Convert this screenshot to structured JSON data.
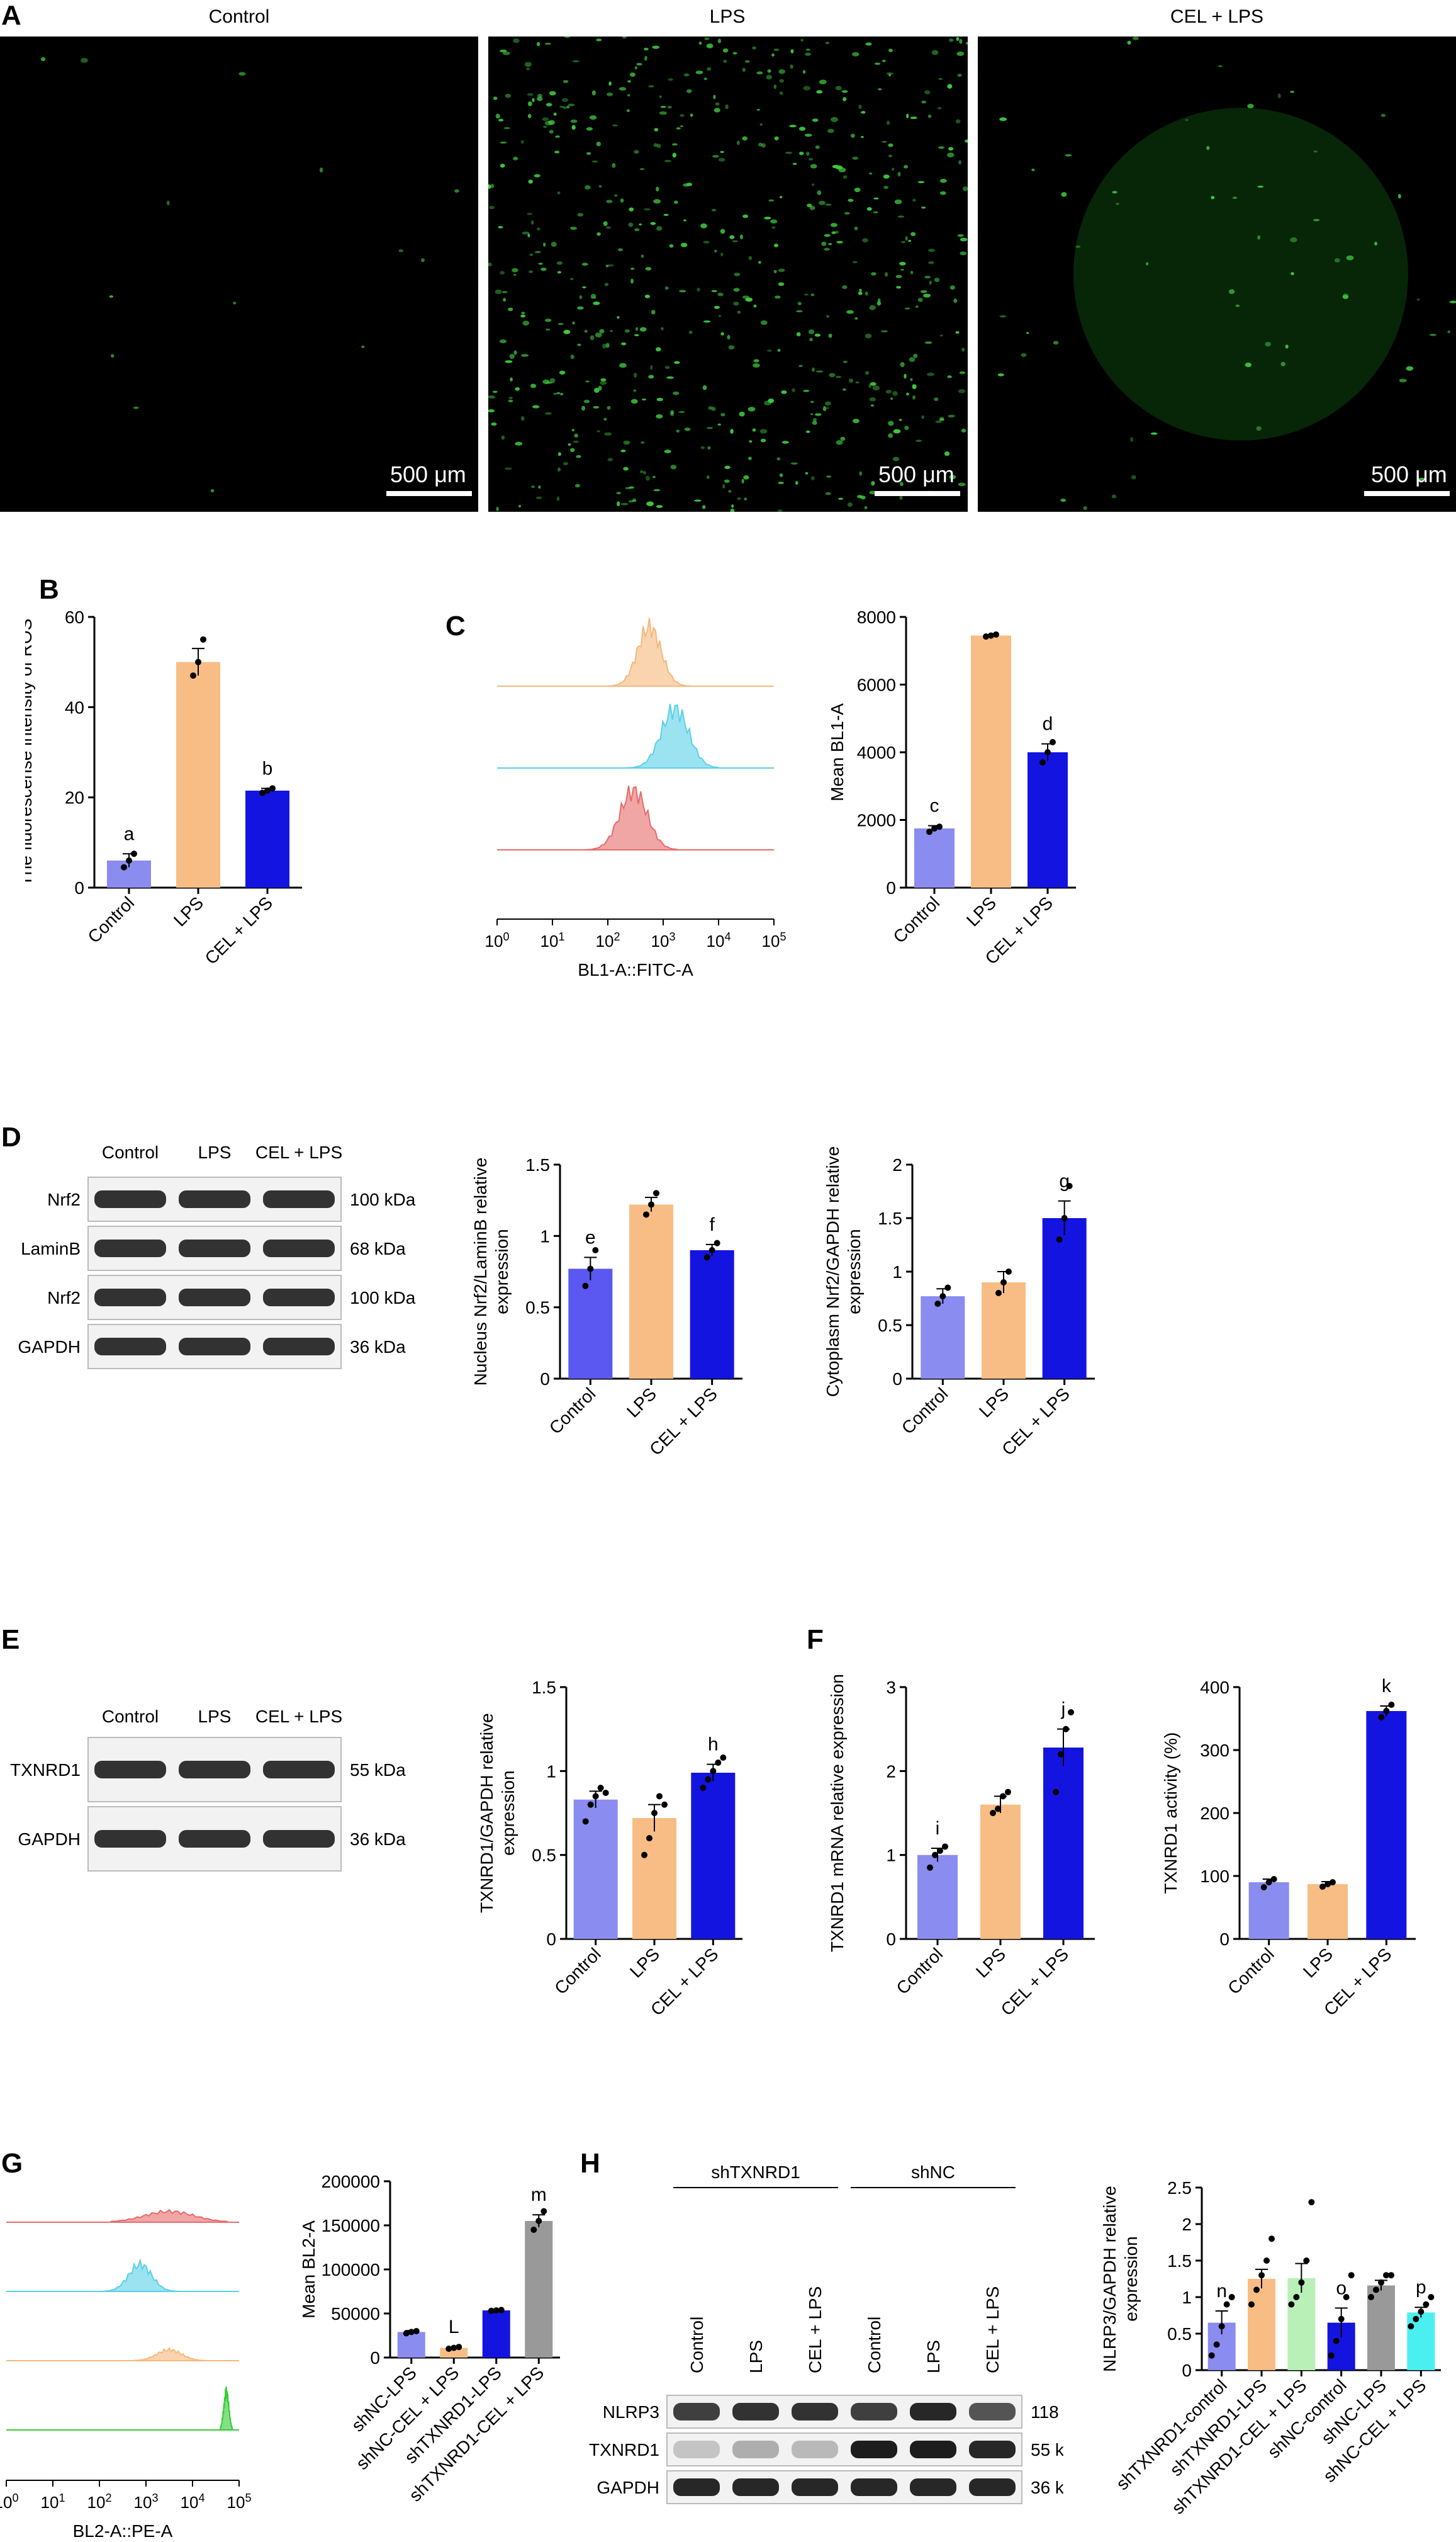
{
  "panel_letters": {
    "A": "A",
    "B": "B",
    "C": "C",
    "D": "D",
    "E": "E",
    "F": "F",
    "G": "G",
    "H": "H"
  },
  "microscopy": {
    "titles": [
      "Control",
      "LPS",
      "CEL + LPS"
    ],
    "scale_label": "500 μm",
    "colors": {
      "cell": "#3ec83e",
      "background": "#000000"
    },
    "cell_density": [
      0.02,
      0.9,
      0.08
    ]
  },
  "westerns": {
    "D": {
      "lanes": [
        "Control",
        "LPS",
        "CEL + LPS"
      ],
      "rows": [
        {
          "name": "Nrf2",
          "kda": "100 kDa"
        },
        {
          "name": "LaminB",
          "kda": "68 kDa"
        },
        {
          "name": "Nrf2",
          "kda": "100 kDa"
        },
        {
          "name": "GAPDH",
          "kda": "36 kDa"
        }
      ]
    },
    "E": {
      "lanes": [
        "Control",
        "LPS",
        "CEL + LPS"
      ],
      "rows": [
        {
          "name": "TXNRD1",
          "kda": "55 kDa"
        },
        {
          "name": "GAPDH",
          "kda": "36 kDa"
        }
      ]
    },
    "H": {
      "groups": [
        "shTXNRD1",
        "shNC"
      ],
      "lanes": [
        "Control",
        "LPS",
        "CEL + LPS",
        "Control",
        "LPS",
        "CEL + LPS"
      ],
      "rows": [
        {
          "name": "NLRP3",
          "kda": "118 kDa"
        },
        {
          "name": "TXNRD1",
          "kda": "55 kDa"
        },
        {
          "name": "GAPDH",
          "kda": "36 kDa"
        }
      ]
    }
  },
  "flow": {
    "C": {
      "xlabel": "BL1-A::FITC-A",
      "ticks": [
        "10",
        "10",
        "10",
        "10",
        "10",
        "10"
      ],
      "exps": [
        "0",
        "1",
        "2",
        "3",
        "4",
        "5"
      ],
      "colors": [
        "#f5b87a",
        "#5ad0e8",
        "#e86a6a"
      ]
    },
    "G": {
      "xlabel": "BL2-A::PE-A",
      "ticks": [
        "10",
        "10",
        "10",
        "10",
        "10",
        "10"
      ],
      "exps": [
        "0",
        "1",
        "2",
        "3",
        "4",
        "5"
      ],
      "colors": [
        "#e86a6a",
        "#5ad0e8",
        "#f5b87a",
        "#33cc33"
      ]
    }
  },
  "chart_data": [
    {
      "id": "B",
      "type": "bar",
      "categories": [
        "Control",
        "LPS",
        "CEL + LPS"
      ],
      "values": [
        6,
        50,
        21.5
      ],
      "errors": [
        1.5,
        3,
        0.5
      ],
      "points": [
        [
          4.5,
          6,
          7.5
        ],
        [
          47,
          50,
          55
        ],
        [
          21,
          21.5,
          22
        ]
      ],
      "ylabel": "The fluorescense intensity of ROS",
      "ylim": [
        0,
        60
      ],
      "yticks": [
        0,
        20,
        40,
        60
      ],
      "letters": [
        "a",
        "",
        "b"
      ],
      "colors": [
        "#8a8cf0",
        "#f8bd84",
        "#1414e0"
      ]
    },
    {
      "id": "C",
      "type": "bar",
      "categories": [
        "Control",
        "LPS",
        "CEL + LPS"
      ],
      "values": [
        1750,
        7450,
        4000
      ],
      "errors": [
        80,
        30,
        250
      ],
      "points": [
        [
          1650,
          1750,
          1800
        ],
        [
          7420,
          7450,
          7480
        ],
        [
          3700,
          4000,
          4300
        ]
      ],
      "ylabel": "Mean BL1-A",
      "ylim": [
        0,
        8000
      ],
      "yticks": [
        0,
        2000,
        4000,
        6000,
        8000
      ],
      "letters": [
        "c",
        "",
        "d"
      ],
      "colors": [
        "#8a8cf0",
        "#f8bd84",
        "#1414e0"
      ]
    },
    {
      "id": "D1",
      "type": "bar",
      "categories": [
        "Control",
        "LPS",
        "CEL + LPS"
      ],
      "values": [
        0.77,
        1.22,
        0.9
      ],
      "errors": [
        0.08,
        0.05,
        0.04
      ],
      "points": [
        [
          0.65,
          0.77,
          0.9
        ],
        [
          1.15,
          1.22,
          1.3
        ],
        [
          0.85,
          0.9,
          0.95
        ]
      ],
      "ylabel": "Nucleus Nrf2/LaminB relative expression",
      "ylim": [
        0,
        1.5
      ],
      "yticks": [
        0,
        0.5,
        1.0,
        1.5
      ],
      "letters": [
        "e",
        "",
        "f"
      ],
      "colors": [
        "#5a58f0",
        "#f8bd84",
        "#1414e0"
      ]
    },
    {
      "id": "D2",
      "type": "bar",
      "categories": [
        "Control",
        "LPS",
        "CEL + LPS"
      ],
      "values": [
        0.77,
        0.9,
        1.5
      ],
      "errors": [
        0.07,
        0.1,
        0.16
      ],
      "points": [
        [
          0.7,
          0.77,
          0.85
        ],
        [
          0.8,
          0.9,
          1.0
        ],
        [
          1.3,
          1.5,
          1.8
        ]
      ],
      "ylabel": "Cytoplasm Nrf2/GAPDH relative expression",
      "ylim": [
        0,
        2.0
      ],
      "yticks": [
        0,
        0.5,
        1.0,
        1.5,
        2.0
      ],
      "letters": [
        "",
        "",
        "g"
      ],
      "colors": [
        "#8a8cf0",
        "#f8bd84",
        "#1414e0"
      ]
    },
    {
      "id": "E",
      "type": "bar",
      "categories": [
        "Control",
        "LPS",
        "CEL + LPS"
      ],
      "values": [
        0.83,
        0.72,
        0.99
      ],
      "errors": [
        0.05,
        0.08,
        0.05
      ],
      "points": [
        [
          0.7,
          0.8,
          0.85,
          0.9,
          0.87
        ],
        [
          0.5,
          0.6,
          0.75,
          0.85,
          0.8
        ],
        [
          0.9,
          0.95,
          1.0,
          1.05,
          1.08
        ]
      ],
      "ylabel": "TXNRD1/GAPDH relative expression",
      "ylim": [
        0,
        1.5
      ],
      "yticks": [
        0,
        0.5,
        1.0,
        1.5
      ],
      "letters": [
        "",
        "",
        "h"
      ],
      "colors": [
        "#8a8cf0",
        "#f8bd84",
        "#1414e0"
      ]
    },
    {
      "id": "F1",
      "type": "bar",
      "categories": [
        "Control",
        "LPS",
        "CEL + LPS"
      ],
      "values": [
        1.0,
        1.6,
        2.28
      ],
      "errors": [
        0.08,
        0.1,
        0.22
      ],
      "points": [
        [
          0.85,
          1.0,
          1.05,
          1.1
        ],
        [
          1.5,
          1.55,
          1.7,
          1.75
        ],
        [
          1.75,
          2.2,
          2.5,
          2.7
        ]
      ],
      "ylabel": "TXNRD1 mRNA relative expression",
      "ylim": [
        0,
        3
      ],
      "yticks": [
        0,
        1,
        2,
        3
      ],
      "letters": [
        "i",
        "",
        "j"
      ],
      "colors": [
        "#8a8cf0",
        "#f8bd84",
        "#1414e0"
      ]
    },
    {
      "id": "F2",
      "type": "bar",
      "categories": [
        "Control",
        "LPS",
        "CEL + LPS"
      ],
      "values": [
        90,
        87,
        362
      ],
      "errors": [
        5,
        4,
        8
      ],
      "points": [
        [
          82,
          90,
          95
        ],
        [
          83,
          87,
          90
        ],
        [
          352,
          362,
          372
        ]
      ],
      "ylabel": "TXNRD1 activity (%)",
      "ylim": [
        0,
        400
      ],
      "yticks": [
        0,
        100,
        200,
        300,
        400
      ],
      "letters": [
        "",
        "",
        "k"
      ],
      "colors": [
        "#8a8cf0",
        "#f8bd84",
        "#1414e0"
      ]
    },
    {
      "id": "G",
      "type": "bar",
      "categories": [
        "shNC-LPS",
        "shNC-CEL + LPS",
        "shTXNRD1-LPS",
        "shTXNRD1-CEL + LPS"
      ],
      "values": [
        29000,
        11000,
        53500,
        155000
      ],
      "errors": [
        1500,
        1000,
        500,
        7000
      ],
      "points": [
        [
          27500,
          29000,
          30000
        ],
        [
          10000,
          11000,
          12000
        ],
        [
          53000,
          53500,
          54000
        ],
        [
          145000,
          155000,
          166000
        ]
      ],
      "ylabel": "Mean BL2-A",
      "ylim": [
        0,
        200000
      ],
      "yticks": [
        0,
        50000,
        100000,
        150000,
        200000
      ],
      "letters": [
        "",
        "L",
        "",
        "m"
      ],
      "colors": [
        "#8a8cf0",
        "#f8bd84",
        "#1414e0",
        "#999999"
      ]
    },
    {
      "id": "H",
      "type": "bar",
      "categories": [
        "shTXNRD1-control",
        "shTXNRD1-LPS",
        "shTXNRD1-CEL + LPS",
        "shNC-control",
        "shNC-LPS",
        "shNC-CEL + LPS"
      ],
      "values": [
        0.65,
        1.25,
        1.26,
        0.65,
        1.16,
        0.79
      ],
      "errors": [
        0.16,
        0.13,
        0.2,
        0.2,
        0.07,
        0.07
      ],
      "points": [
        [
          0.2,
          0.35,
          0.6,
          0.9,
          1.0
        ],
        [
          0.9,
          1.1,
          1.3,
          1.5,
          1.8
        ],
        [
          0.9,
          1.0,
          1.2,
          1.5,
          2.3
        ],
        [
          0.2,
          0.4,
          0.7,
          1.0,
          1.3
        ],
        [
          1.0,
          1.1,
          1.2,
          1.3,
          1.3
        ],
        [
          0.6,
          0.7,
          0.8,
          0.9,
          1.0
        ]
      ],
      "ylabel": "NLRP3/GAPDH relative expression",
      "ylim": [
        0,
        2.5
      ],
      "yticks": [
        0,
        0.5,
        1.0,
        1.5,
        2.0,
        2.5
      ],
      "letters": [
        "n",
        "",
        "",
        "o",
        "",
        "p"
      ],
      "colors": [
        "#8a8cf0",
        "#f8bd84",
        "#b8f0b8",
        "#1414e0",
        "#999999",
        "#4af0f0"
      ]
    }
  ]
}
